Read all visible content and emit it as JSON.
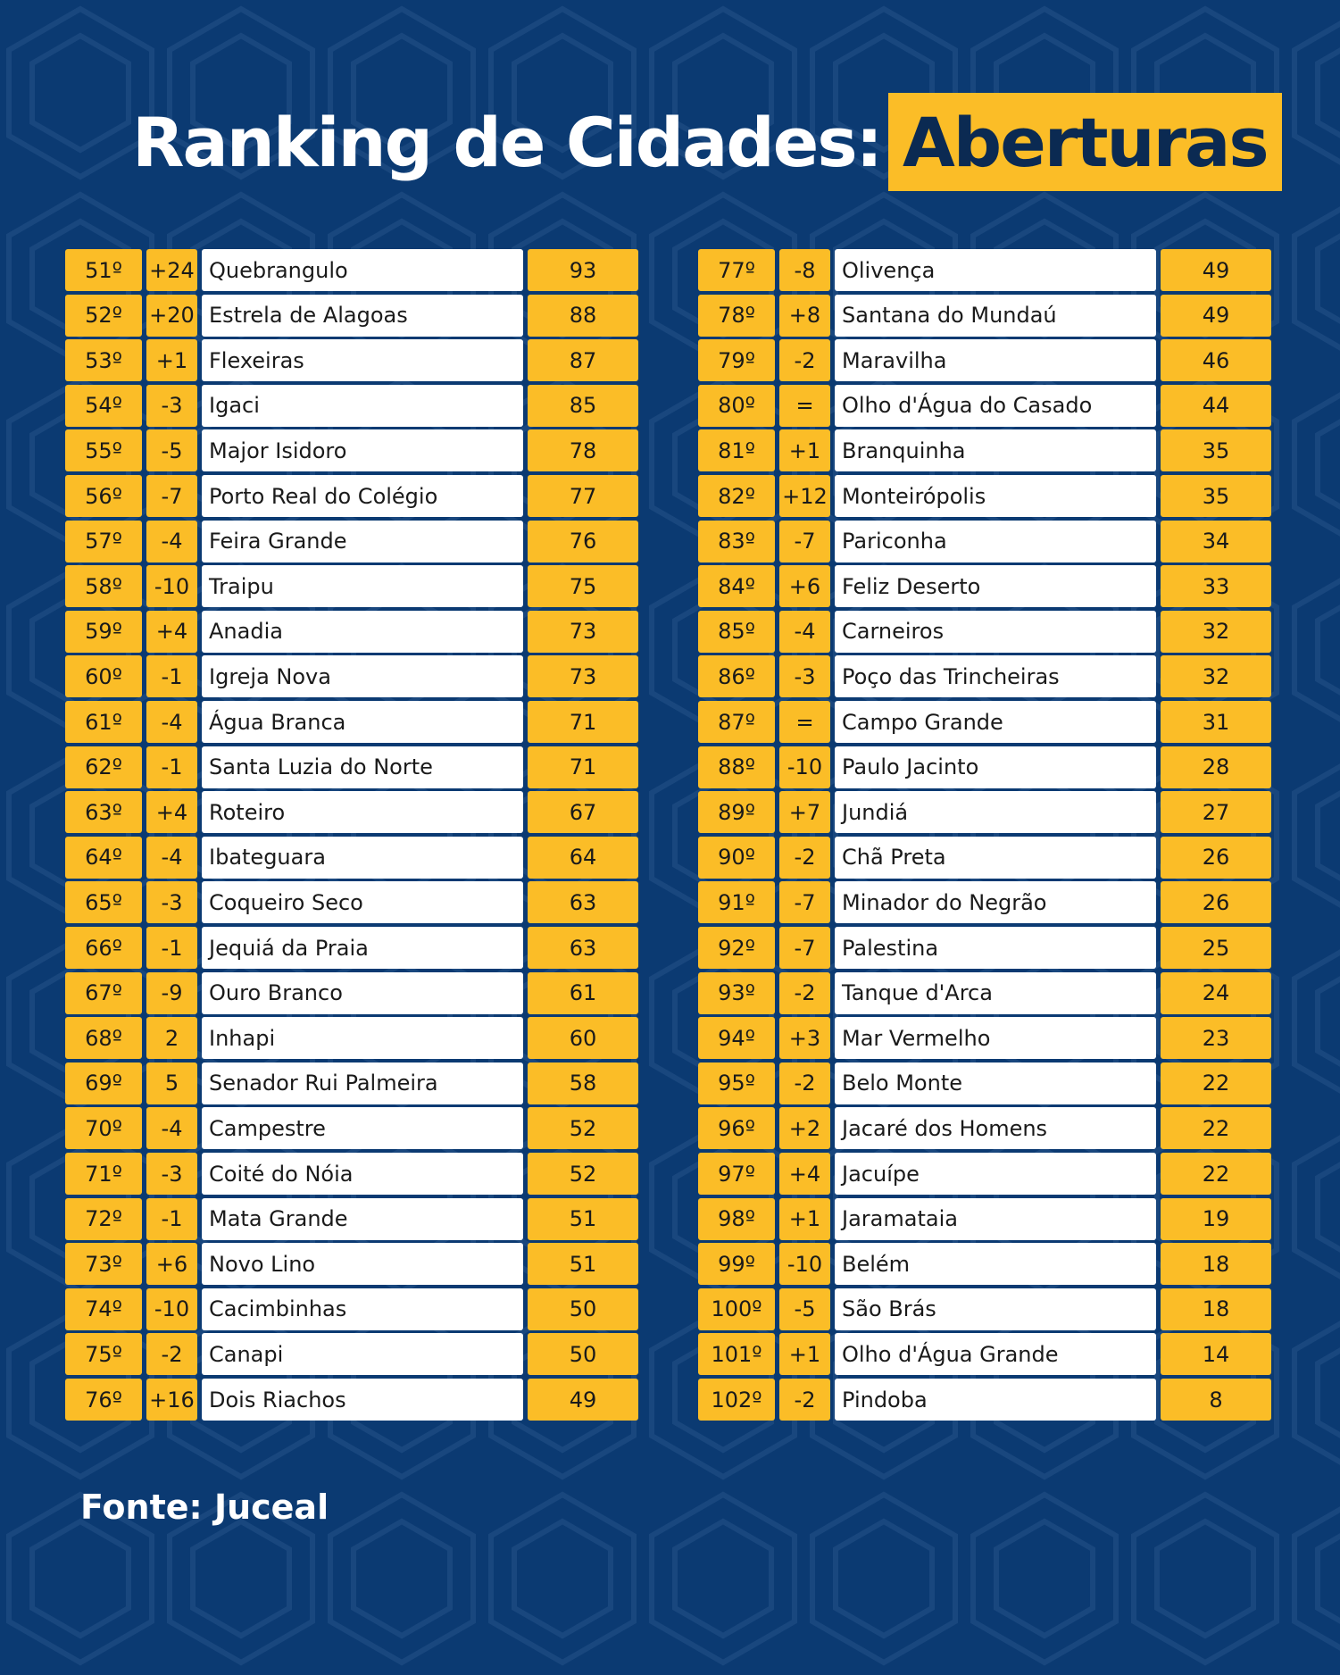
{
  "title": {
    "text": "Ranking de Cidades:",
    "highlight": "Aberturas"
  },
  "colors": {
    "background": "#0b3a72",
    "accent": "#fbbd27",
    "row_bg": "#ffffff"
  },
  "left_table": [
    [
      "51º",
      "+24",
      "Quebrangulo",
      "93"
    ],
    [
      "52º",
      "+20",
      "Estrela de Alagoas",
      "88"
    ],
    [
      "53º",
      "+1",
      "Flexeiras",
      "87"
    ],
    [
      "54º",
      "-3",
      "Igaci",
      "85"
    ],
    [
      "55º",
      "-5",
      "Major Isidoro",
      "78"
    ],
    [
      "56º",
      "-7",
      "Porto Real do Colégio",
      "77"
    ],
    [
      "57º",
      "-4",
      "Feira Grande",
      "76"
    ],
    [
      "58º",
      "-10",
      "Traipu",
      "75"
    ],
    [
      "59º",
      "+4",
      "Anadia",
      "73"
    ],
    [
      "60º",
      "-1",
      "Igreja Nova",
      "73"
    ],
    [
      "61º",
      "-4",
      "Água Branca",
      "71"
    ],
    [
      "62º",
      "-1",
      "Santa Luzia do Norte",
      "71"
    ],
    [
      "63º",
      "+4",
      "Roteiro",
      "67"
    ],
    [
      "64º",
      "-4",
      "Ibateguara",
      "64"
    ],
    [
      "65º",
      "-3",
      "Coqueiro Seco",
      "63"
    ],
    [
      "66º",
      "-1",
      "Jequiá da Praia",
      "63"
    ],
    [
      "67º",
      "-9",
      "Ouro Branco",
      "61"
    ],
    [
      "68º",
      "2",
      "Inhapi",
      "60"
    ],
    [
      "69º",
      "5",
      "Senador Rui Palmeira",
      "58"
    ],
    [
      "70º",
      "-4",
      "Campestre",
      "52"
    ],
    [
      "71º",
      "-3",
      "Coité do Nóia",
      "52"
    ],
    [
      "72º",
      "-1",
      "Mata Grande",
      "51"
    ],
    [
      "73º",
      "+6",
      "Novo Lino",
      "51"
    ],
    [
      "74º",
      "-10",
      "Cacimbinhas",
      "50"
    ],
    [
      "75º",
      "-2",
      "Canapi",
      "50"
    ],
    [
      "76º",
      "+16",
      "Dois Riachos",
      "49"
    ]
  ],
  "right_table": [
    [
      "77º",
      "-8",
      "Olivença",
      "49"
    ],
    [
      "78º",
      "+8",
      "Santana do Mundaú",
      "49"
    ],
    [
      "79º",
      "-2",
      "Maravilha",
      "46"
    ],
    [
      "80º",
      "=",
      "Olho d'Água do Casado",
      "44"
    ],
    [
      "81º",
      "+1",
      "Branquinha",
      "35"
    ],
    [
      "82º",
      "+12",
      "Monteirópolis",
      "35"
    ],
    [
      "83º",
      "-7",
      "Pariconha",
      "34"
    ],
    [
      "84º",
      "+6",
      "Feliz Deserto",
      "33"
    ],
    [
      "85º",
      "-4",
      "Carneiros",
      "32"
    ],
    [
      "86º",
      "-3",
      "Poço das Trincheiras",
      "32"
    ],
    [
      "87º",
      "=",
      "Campo Grande",
      "31"
    ],
    [
      "88º",
      "-10",
      "Paulo Jacinto",
      "28"
    ],
    [
      "89º",
      "+7",
      "Jundiá",
      "27"
    ],
    [
      "90º",
      "-2",
      "Chã Preta",
      "26"
    ],
    [
      "91º",
      "-7",
      "Minador do Negrão",
      "26"
    ],
    [
      "92º",
      "-7",
      "Palestina",
      "25"
    ],
    [
      "93º",
      "-2",
      "Tanque d'Arca",
      "24"
    ],
    [
      "94º",
      "+3",
      "Mar Vermelho",
      "23"
    ],
    [
      "95º",
      "-2",
      "Belo Monte",
      "22"
    ],
    [
      "96º",
      "+2",
      "Jacaré dos Homens",
      "22"
    ],
    [
      "97º",
      "+4",
      "Jacuípe",
      "22"
    ],
    [
      "98º",
      "+1",
      "Jaramataia",
      "19"
    ],
    [
      "99º",
      "-10",
      "Belém",
      "18"
    ],
    [
      "100º",
      "-5",
      "São Brás",
      "18"
    ],
    [
      "101º",
      "+1",
      "Olho d'Água Grande",
      "14"
    ],
    [
      "102º",
      "-2",
      "Pindoba",
      "8"
    ]
  ],
  "source": "Fonte: Juceal"
}
